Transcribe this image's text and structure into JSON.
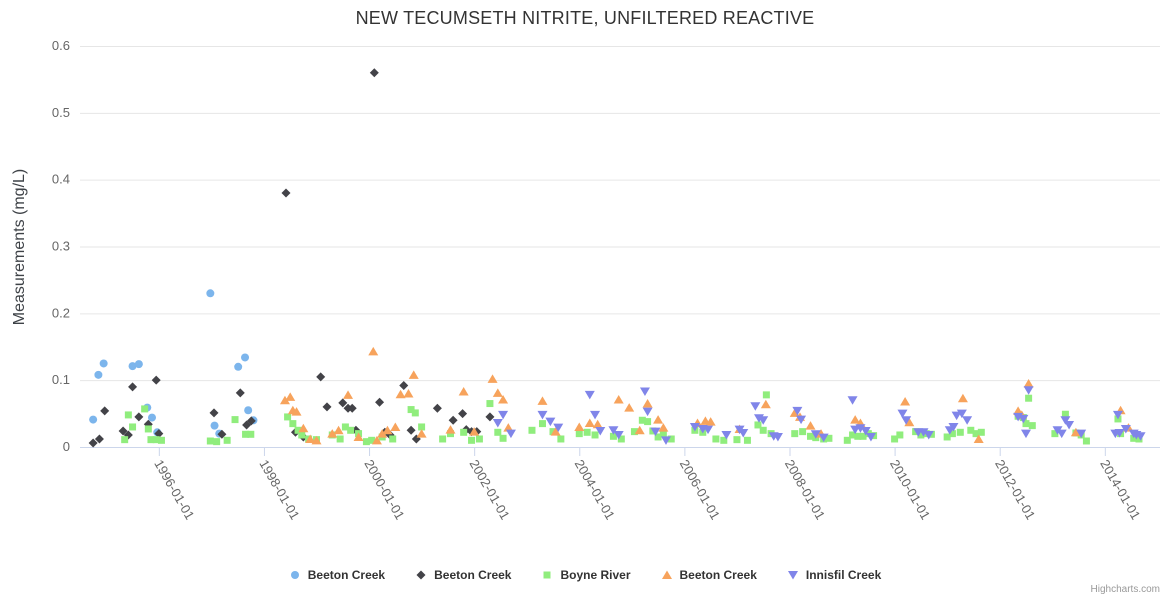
{
  "credit": "Highcharts.com",
  "chart_data": {
    "type": "scatter",
    "title": "NEW TECUMSETH NITRITE, UNFILTERED REACTIVE",
    "xlabel": "",
    "ylabel": "Measurements (mg/L)",
    "ylim": [
      0,
      0.6
    ],
    "xlim": [
      1994.5,
      2015.05
    ],
    "grid": true,
    "legend_position": "bottom",
    "yticks": [
      {
        "value": 0,
        "label": "0"
      },
      {
        "value": 0.1,
        "label": "0.1"
      },
      {
        "value": 0.2,
        "label": "0.2"
      },
      {
        "value": 0.3,
        "label": "0.3"
      },
      {
        "value": 0.4,
        "label": "0.4"
      },
      {
        "value": 0.5,
        "label": "0.5"
      },
      {
        "value": 0.6,
        "label": "0.6"
      }
    ],
    "xticks": [
      {
        "value": 1996,
        "label": "1996-01-01"
      },
      {
        "value": 1998,
        "label": "1998-01-01"
      },
      {
        "value": 2000,
        "label": "2000-01-01"
      },
      {
        "value": 2002,
        "label": "2002-01-01"
      },
      {
        "value": 2004,
        "label": "2004-01-01"
      },
      {
        "value": 2006,
        "label": "2006-01-01"
      },
      {
        "value": 2008,
        "label": "2008-01-01"
      },
      {
        "value": 2010,
        "label": "2010-01-01"
      },
      {
        "value": 2012,
        "label": "2012-01-01"
      },
      {
        "value": 2014,
        "label": "2014-01-01"
      }
    ],
    "series": [
      {
        "name": "Beeton Creek",
        "color": "#7cb5ec",
        "marker": "circle",
        "points": [
          [
            1994.75,
            0.041
          ],
          [
            1994.85,
            0.108
          ],
          [
            1994.95,
            0.125
          ],
          [
            1995.5,
            0.121
          ],
          [
            1995.62,
            0.124
          ],
          [
            1995.78,
            0.059
          ],
          [
            1995.87,
            0.044
          ],
          [
            1995.97,
            0.022
          ],
          [
            1996.98,
            0.23
          ],
          [
            1997.06,
            0.032
          ],
          [
            1997.15,
            0.02
          ],
          [
            1997.51,
            0.12
          ],
          [
            1997.64,
            0.134
          ],
          [
            1997.7,
            0.055
          ],
          [
            1997.8,
            0.04
          ]
        ]
      },
      {
        "name": "Beeton Creek",
        "color": "#434348",
        "marker": "diamond",
        "points": [
          [
            1994.75,
            0.006
          ],
          [
            1994.87,
            0.012
          ],
          [
            1994.97,
            0.054
          ],
          [
            1995.32,
            0.024
          ],
          [
            1995.42,
            0.018
          ],
          [
            1995.5,
            0.09
          ],
          [
            1995.62,
            0.045
          ],
          [
            1995.8,
            0.034
          ],
          [
            1995.95,
            0.1
          ],
          [
            1996.0,
            0.02
          ],
          [
            1997.05,
            0.051
          ],
          [
            1997.2,
            0.019
          ],
          [
            1997.55,
            0.081
          ],
          [
            1997.67,
            0.033
          ],
          [
            1997.76,
            0.039
          ],
          [
            1998.42,
            0.38
          ],
          [
            1998.6,
            0.022
          ],
          [
            1998.75,
            0.015
          ],
          [
            1999.08,
            0.105
          ],
          [
            1999.2,
            0.06
          ],
          [
            1999.5,
            0.066
          ],
          [
            1999.6,
            0.058
          ],
          [
            1999.68,
            0.058
          ],
          [
            1999.75,
            0.025
          ],
          [
            2000.1,
            0.56
          ],
          [
            2000.2,
            0.067
          ],
          [
            2000.3,
            0.022
          ],
          [
            2000.4,
            0.018
          ],
          [
            2000.66,
            0.092
          ],
          [
            2000.8,
            0.025
          ],
          [
            2000.9,
            0.012
          ],
          [
            2001.3,
            0.058
          ],
          [
            2001.6,
            0.04
          ],
          [
            2001.78,
            0.05
          ],
          [
            2001.85,
            0.026
          ],
          [
            2001.95,
            0.023
          ],
          [
            2002.05,
            0.023
          ],
          [
            2002.3,
            0.045
          ]
        ]
      },
      {
        "name": "Boyne River",
        "color": "#90ed7d",
        "marker": "square",
        "points": [
          [
            1995.35,
            0.011
          ],
          [
            1995.42,
            0.048
          ],
          [
            1995.5,
            0.03
          ],
          [
            1995.73,
            0.057
          ],
          [
            1995.8,
            0.027
          ],
          [
            1995.85,
            0.011
          ],
          [
            1995.95,
            0.011
          ],
          [
            1996.05,
            0.01
          ],
          [
            1996.98,
            0.009
          ],
          [
            1997.1,
            0.008
          ],
          [
            1997.3,
            0.01
          ],
          [
            1997.45,
            0.041
          ],
          [
            1997.65,
            0.019
          ],
          [
            1997.75,
            0.019
          ],
          [
            1998.45,
            0.045
          ],
          [
            1998.55,
            0.035
          ],
          [
            1998.65,
            0.025
          ],
          [
            1998.72,
            0.018
          ],
          [
            1998.85,
            0.012
          ],
          [
            1999.0,
            0.011
          ],
          [
            1999.3,
            0.018
          ],
          [
            1999.45,
            0.012
          ],
          [
            1999.55,
            0.03
          ],
          [
            1999.65,
            0.025
          ],
          [
            1999.8,
            0.02
          ],
          [
            1999.95,
            0.008
          ],
          [
            2000.05,
            0.01
          ],
          [
            2000.25,
            0.015
          ],
          [
            2000.45,
            0.012
          ],
          [
            2000.8,
            0.056
          ],
          [
            2000.88,
            0.051
          ],
          [
            2001.0,
            0.03
          ],
          [
            2001.4,
            0.012
          ],
          [
            2001.55,
            0.02
          ],
          [
            2001.8,
            0.022
          ],
          [
            2001.95,
            0.01
          ],
          [
            2002.1,
            0.012
          ],
          [
            2002.3,
            0.065
          ],
          [
            2002.45,
            0.022
          ],
          [
            2002.55,
            0.013
          ],
          [
            2003.1,
            0.025
          ],
          [
            2003.3,
            0.035
          ],
          [
            2003.5,
            0.023
          ],
          [
            2003.65,
            0.012
          ],
          [
            2004.0,
            0.02
          ],
          [
            2004.15,
            0.022
          ],
          [
            2004.3,
            0.018
          ],
          [
            2004.65,
            0.016
          ],
          [
            2004.8,
            0.012
          ],
          [
            2005.05,
            0.023
          ],
          [
            2005.2,
            0.04
          ],
          [
            2005.3,
            0.038
          ],
          [
            2005.4,
            0.024
          ],
          [
            2005.5,
            0.015
          ],
          [
            2005.6,
            0.02
          ],
          [
            2005.75,
            0.012
          ],
          [
            2006.2,
            0.025
          ],
          [
            2006.35,
            0.022
          ],
          [
            2006.6,
            0.012
          ],
          [
            2006.75,
            0.01
          ],
          [
            2007.0,
            0.011
          ],
          [
            2007.2,
            0.01
          ],
          [
            2007.4,
            0.033
          ],
          [
            2007.5,
            0.025
          ],
          [
            2007.56,
            0.078
          ],
          [
            2007.65,
            0.02
          ],
          [
            2008.1,
            0.02
          ],
          [
            2008.25,
            0.023
          ],
          [
            2008.4,
            0.016
          ],
          [
            2008.5,
            0.014
          ],
          [
            2008.65,
            0.012
          ],
          [
            2008.75,
            0.013
          ],
          [
            2009.1,
            0.01
          ],
          [
            2009.2,
            0.018
          ],
          [
            2009.3,
            0.016
          ],
          [
            2009.4,
            0.016
          ],
          [
            2009.5,
            0.02
          ],
          [
            2009.6,
            0.017
          ],
          [
            2010.0,
            0.012
          ],
          [
            2010.1,
            0.018
          ],
          [
            2010.4,
            0.023
          ],
          [
            2010.5,
            0.018
          ],
          [
            2010.6,
            0.02
          ],
          [
            2010.7,
            0.019
          ],
          [
            2011.0,
            0.015
          ],
          [
            2011.1,
            0.02
          ],
          [
            2011.25,
            0.022
          ],
          [
            2011.45,
            0.025
          ],
          [
            2011.55,
            0.02
          ],
          [
            2011.65,
            0.022
          ],
          [
            2012.35,
            0.046
          ],
          [
            2012.45,
            0.044
          ],
          [
            2012.55,
            0.073
          ],
          [
            2012.5,
            0.035
          ],
          [
            2012.62,
            0.032
          ],
          [
            2013.05,
            0.02
          ],
          [
            2013.25,
            0.049
          ],
          [
            2013.45,
            0.021
          ],
          [
            2013.55,
            0.018
          ],
          [
            2013.65,
            0.009
          ],
          [
            2014.25,
            0.042
          ],
          [
            2014.3,
            0.02
          ],
          [
            2014.55,
            0.013
          ],
          [
            2014.65,
            0.012
          ]
        ]
      },
      {
        "name": "Beeton Creek",
        "color": "#f7a35c",
        "marker": "triangle-up",
        "points": [
          [
            1998.4,
            0.07
          ],
          [
            1998.5,
            0.075
          ],
          [
            1998.55,
            0.055
          ],
          [
            1998.62,
            0.053
          ],
          [
            1998.75,
            0.028
          ],
          [
            1998.88,
            0.012
          ],
          [
            1999.0,
            0.01
          ],
          [
            1999.3,
            0.02
          ],
          [
            1999.42,
            0.025
          ],
          [
            1999.6,
            0.078
          ],
          [
            1999.8,
            0.015
          ],
          [
            2000.08,
            0.143
          ],
          [
            2000.15,
            0.01
          ],
          [
            2000.25,
            0.02
          ],
          [
            2000.35,
            0.025
          ],
          [
            2000.5,
            0.03
          ],
          [
            2000.6,
            0.079
          ],
          [
            2000.75,
            0.08
          ],
          [
            2000.85,
            0.108
          ],
          [
            2001.0,
            0.02
          ],
          [
            2001.55,
            0.026
          ],
          [
            2001.8,
            0.083
          ],
          [
            2002.0,
            0.023
          ],
          [
            2002.35,
            0.102
          ],
          [
            2002.45,
            0.081
          ],
          [
            2002.55,
            0.071
          ],
          [
            2002.65,
            0.029
          ],
          [
            2003.3,
            0.069
          ],
          [
            2003.55,
            0.023
          ],
          [
            2004.0,
            0.03
          ],
          [
            2004.2,
            0.036
          ],
          [
            2004.35,
            0.034
          ],
          [
            2004.75,
            0.071
          ],
          [
            2004.95,
            0.059
          ],
          [
            2005.15,
            0.025
          ],
          [
            2005.3,
            0.065
          ],
          [
            2005.5,
            0.041
          ],
          [
            2005.6,
            0.029
          ],
          [
            2006.25,
            0.036
          ],
          [
            2006.4,
            0.039
          ],
          [
            2006.5,
            0.038
          ],
          [
            2007.05,
            0.027
          ],
          [
            2007.55,
            0.064
          ],
          [
            2008.1,
            0.051
          ],
          [
            2008.2,
            0.045
          ],
          [
            2008.4,
            0.032
          ],
          [
            2008.6,
            0.02
          ],
          [
            2009.25,
            0.041
          ],
          [
            2009.35,
            0.036
          ],
          [
            2010.2,
            0.068
          ],
          [
            2010.28,
            0.037
          ],
          [
            2011.3,
            0.073
          ],
          [
            2011.6,
            0.012
          ],
          [
            2012.35,
            0.054
          ],
          [
            2012.42,
            0.048
          ],
          [
            2012.55,
            0.095
          ],
          [
            2013.45,
            0.022
          ],
          [
            2014.3,
            0.055
          ],
          [
            2014.45,
            0.029
          ]
        ]
      },
      {
        "name": "Innisfil Creek",
        "color": "#8085e9",
        "marker": "triangle-down",
        "points": [
          [
            2002.45,
            0.036
          ],
          [
            2002.55,
            0.048
          ],
          [
            2002.7,
            0.02
          ],
          [
            2003.3,
            0.048
          ],
          [
            2003.45,
            0.038
          ],
          [
            2003.6,
            0.029
          ],
          [
            2004.2,
            0.078
          ],
          [
            2004.3,
            0.048
          ],
          [
            2004.4,
            0.024
          ],
          [
            2004.65,
            0.025
          ],
          [
            2004.75,
            0.018
          ],
          [
            2005.25,
            0.083
          ],
          [
            2005.3,
            0.053
          ],
          [
            2005.45,
            0.023
          ],
          [
            2005.65,
            0.01
          ],
          [
            2006.2,
            0.03
          ],
          [
            2006.35,
            0.027
          ],
          [
            2006.45,
            0.026
          ],
          [
            2006.8,
            0.018
          ],
          [
            2007.05,
            0.026
          ],
          [
            2007.12,
            0.021
          ],
          [
            2007.35,
            0.061
          ],
          [
            2007.42,
            0.043
          ],
          [
            2007.5,
            0.04
          ],
          [
            2007.7,
            0.016
          ],
          [
            2007.78,
            0.015
          ],
          [
            2008.15,
            0.054
          ],
          [
            2008.22,
            0.041
          ],
          [
            2008.5,
            0.019
          ],
          [
            2008.65,
            0.014
          ],
          [
            2009.2,
            0.07
          ],
          [
            2009.25,
            0.026
          ],
          [
            2009.35,
            0.028
          ],
          [
            2009.45,
            0.024
          ],
          [
            2009.55,
            0.015
          ],
          [
            2010.15,
            0.05
          ],
          [
            2010.22,
            0.04
          ],
          [
            2010.45,
            0.022
          ],
          [
            2010.55,
            0.022
          ],
          [
            2010.65,
            0.018
          ],
          [
            2011.05,
            0.025
          ],
          [
            2011.12,
            0.03
          ],
          [
            2011.18,
            0.047
          ],
          [
            2011.28,
            0.05
          ],
          [
            2011.38,
            0.04
          ],
          [
            2012.55,
            0.085
          ],
          [
            2012.35,
            0.045
          ],
          [
            2012.45,
            0.042
          ],
          [
            2012.5,
            0.02
          ],
          [
            2013.1,
            0.025
          ],
          [
            2013.18,
            0.02
          ],
          [
            2013.25,
            0.04
          ],
          [
            2013.32,
            0.033
          ],
          [
            2013.55,
            0.02
          ],
          [
            2014.2,
            0.02
          ],
          [
            2014.25,
            0.048
          ],
          [
            2014.28,
            0.021
          ],
          [
            2014.4,
            0.027
          ],
          [
            2014.55,
            0.02
          ],
          [
            2014.6,
            0.018
          ],
          [
            2014.68,
            0.016
          ]
        ]
      }
    ]
  }
}
